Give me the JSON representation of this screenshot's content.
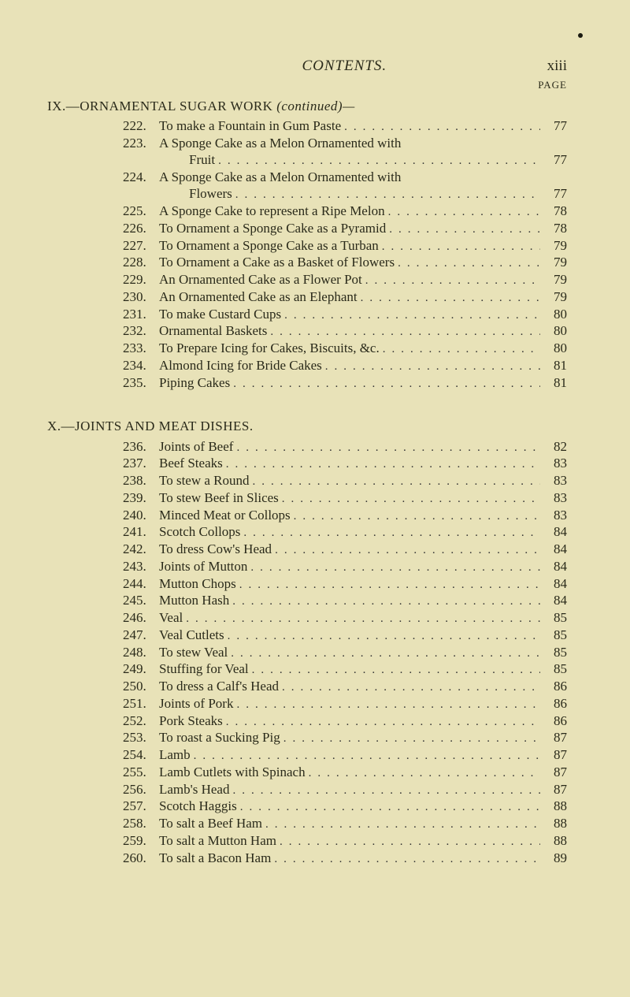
{
  "running_head": "CONTENTS.",
  "page_number": "xiii",
  "page_label": "PAGE",
  "sections": [
    {
      "heading_prefix": "IX.—",
      "heading": "ORNAMENTAL SUGAR WORK",
      "heading_suffix": " (continued)—",
      "entries": [
        {
          "n": "222.",
          "t": "To make a Fountain in Gum Paste",
          "p": "77"
        },
        {
          "n": "223.",
          "t": "A Sponge Cake as a Melon Ornamented with",
          "cont": "Fruit",
          "p": "77"
        },
        {
          "n": "224.",
          "t": "A Sponge Cake as a Melon Ornamented with",
          "cont": "Flowers",
          "p": "77"
        },
        {
          "n": "225.",
          "t": "A Sponge Cake to represent a Ripe Melon",
          "p": "78"
        },
        {
          "n": "226.",
          "t": "To Ornament a Sponge Cake as a Pyramid",
          "p": "78"
        },
        {
          "n": "227.",
          "t": "To Ornament a Sponge Cake as a Turban",
          "p": "79"
        },
        {
          "n": "228.",
          "t": "To Ornament a Cake as a Basket of Flowers",
          "p": "79"
        },
        {
          "n": "229.",
          "t": "An Ornamented Cake as a Flower Pot",
          "p": "79"
        },
        {
          "n": "230.",
          "t": "An Ornamented Cake as an Elephant",
          "p": "79"
        },
        {
          "n": "231.",
          "t": "To make Custard Cups",
          "p": "80"
        },
        {
          "n": "232.",
          "t": "Ornamental Baskets",
          "p": "80"
        },
        {
          "n": "233.",
          "t": "To Prepare Icing for Cakes, Biscuits, &c.",
          "p": "80"
        },
        {
          "n": "234.",
          "t": "Almond Icing for Bride Cakes",
          "p": "81"
        },
        {
          "n": "235.",
          "t": "Piping Cakes",
          "p": "81"
        }
      ]
    },
    {
      "heading_prefix": "X.—",
      "heading": "JOINTS AND MEAT DISHES.",
      "heading_suffix": "",
      "entries": [
        {
          "n": "236.",
          "t": "Joints of Beef",
          "p": "82"
        },
        {
          "n": "237.",
          "t": "Beef Steaks",
          "p": "83"
        },
        {
          "n": "238.",
          "t": "To stew a Round",
          "p": "83"
        },
        {
          "n": "239.",
          "t": "To stew Beef in Slices",
          "p": "83"
        },
        {
          "n": "240.",
          "t": "Minced Meat or Collops",
          "p": "83"
        },
        {
          "n": "241.",
          "t": "Scotch Collops",
          "p": "84"
        },
        {
          "n": "242.",
          "t": "To dress Cow's Head",
          "p": "84"
        },
        {
          "n": "243.",
          "t": "Joints of Mutton",
          "p": "84"
        },
        {
          "n": "244.",
          "t": "Mutton Chops",
          "p": "84"
        },
        {
          "n": "245.",
          "t": "Mutton Hash",
          "p": "84"
        },
        {
          "n": "246.",
          "t": "Veal",
          "p": "85"
        },
        {
          "n": "247.",
          "t": "Veal Cutlets",
          "p": "85"
        },
        {
          "n": "248.",
          "t": "To stew Veal",
          "p": "85"
        },
        {
          "n": "249.",
          "t": "Stuffing for Veal",
          "p": "85"
        },
        {
          "n": "250.",
          "t": "To dress a Calf's Head",
          "p": "86"
        },
        {
          "n": "251.",
          "t": "Joints of Pork",
          "p": "86"
        },
        {
          "n": "252.",
          "t": "Pork Steaks",
          "p": "86"
        },
        {
          "n": "253.",
          "t": "To roast a Sucking Pig",
          "p": "87"
        },
        {
          "n": "254.",
          "t": "Lamb",
          "p": "87"
        },
        {
          "n": "255.",
          "t": "Lamb Cutlets with Spinach",
          "p": "87"
        },
        {
          "n": "256.",
          "t": "Lamb's Head",
          "p": "87"
        },
        {
          "n": "257.",
          "t": "Scotch Haggis",
          "p": "88"
        },
        {
          "n": "258.",
          "t": "To salt a Beef Ham",
          "p": "88"
        },
        {
          "n": "259.",
          "t": "To salt a Mutton Ham",
          "p": "88"
        },
        {
          "n": "260.",
          "t": "To salt a Bacon Ham",
          "p": "89"
        }
      ]
    }
  ]
}
